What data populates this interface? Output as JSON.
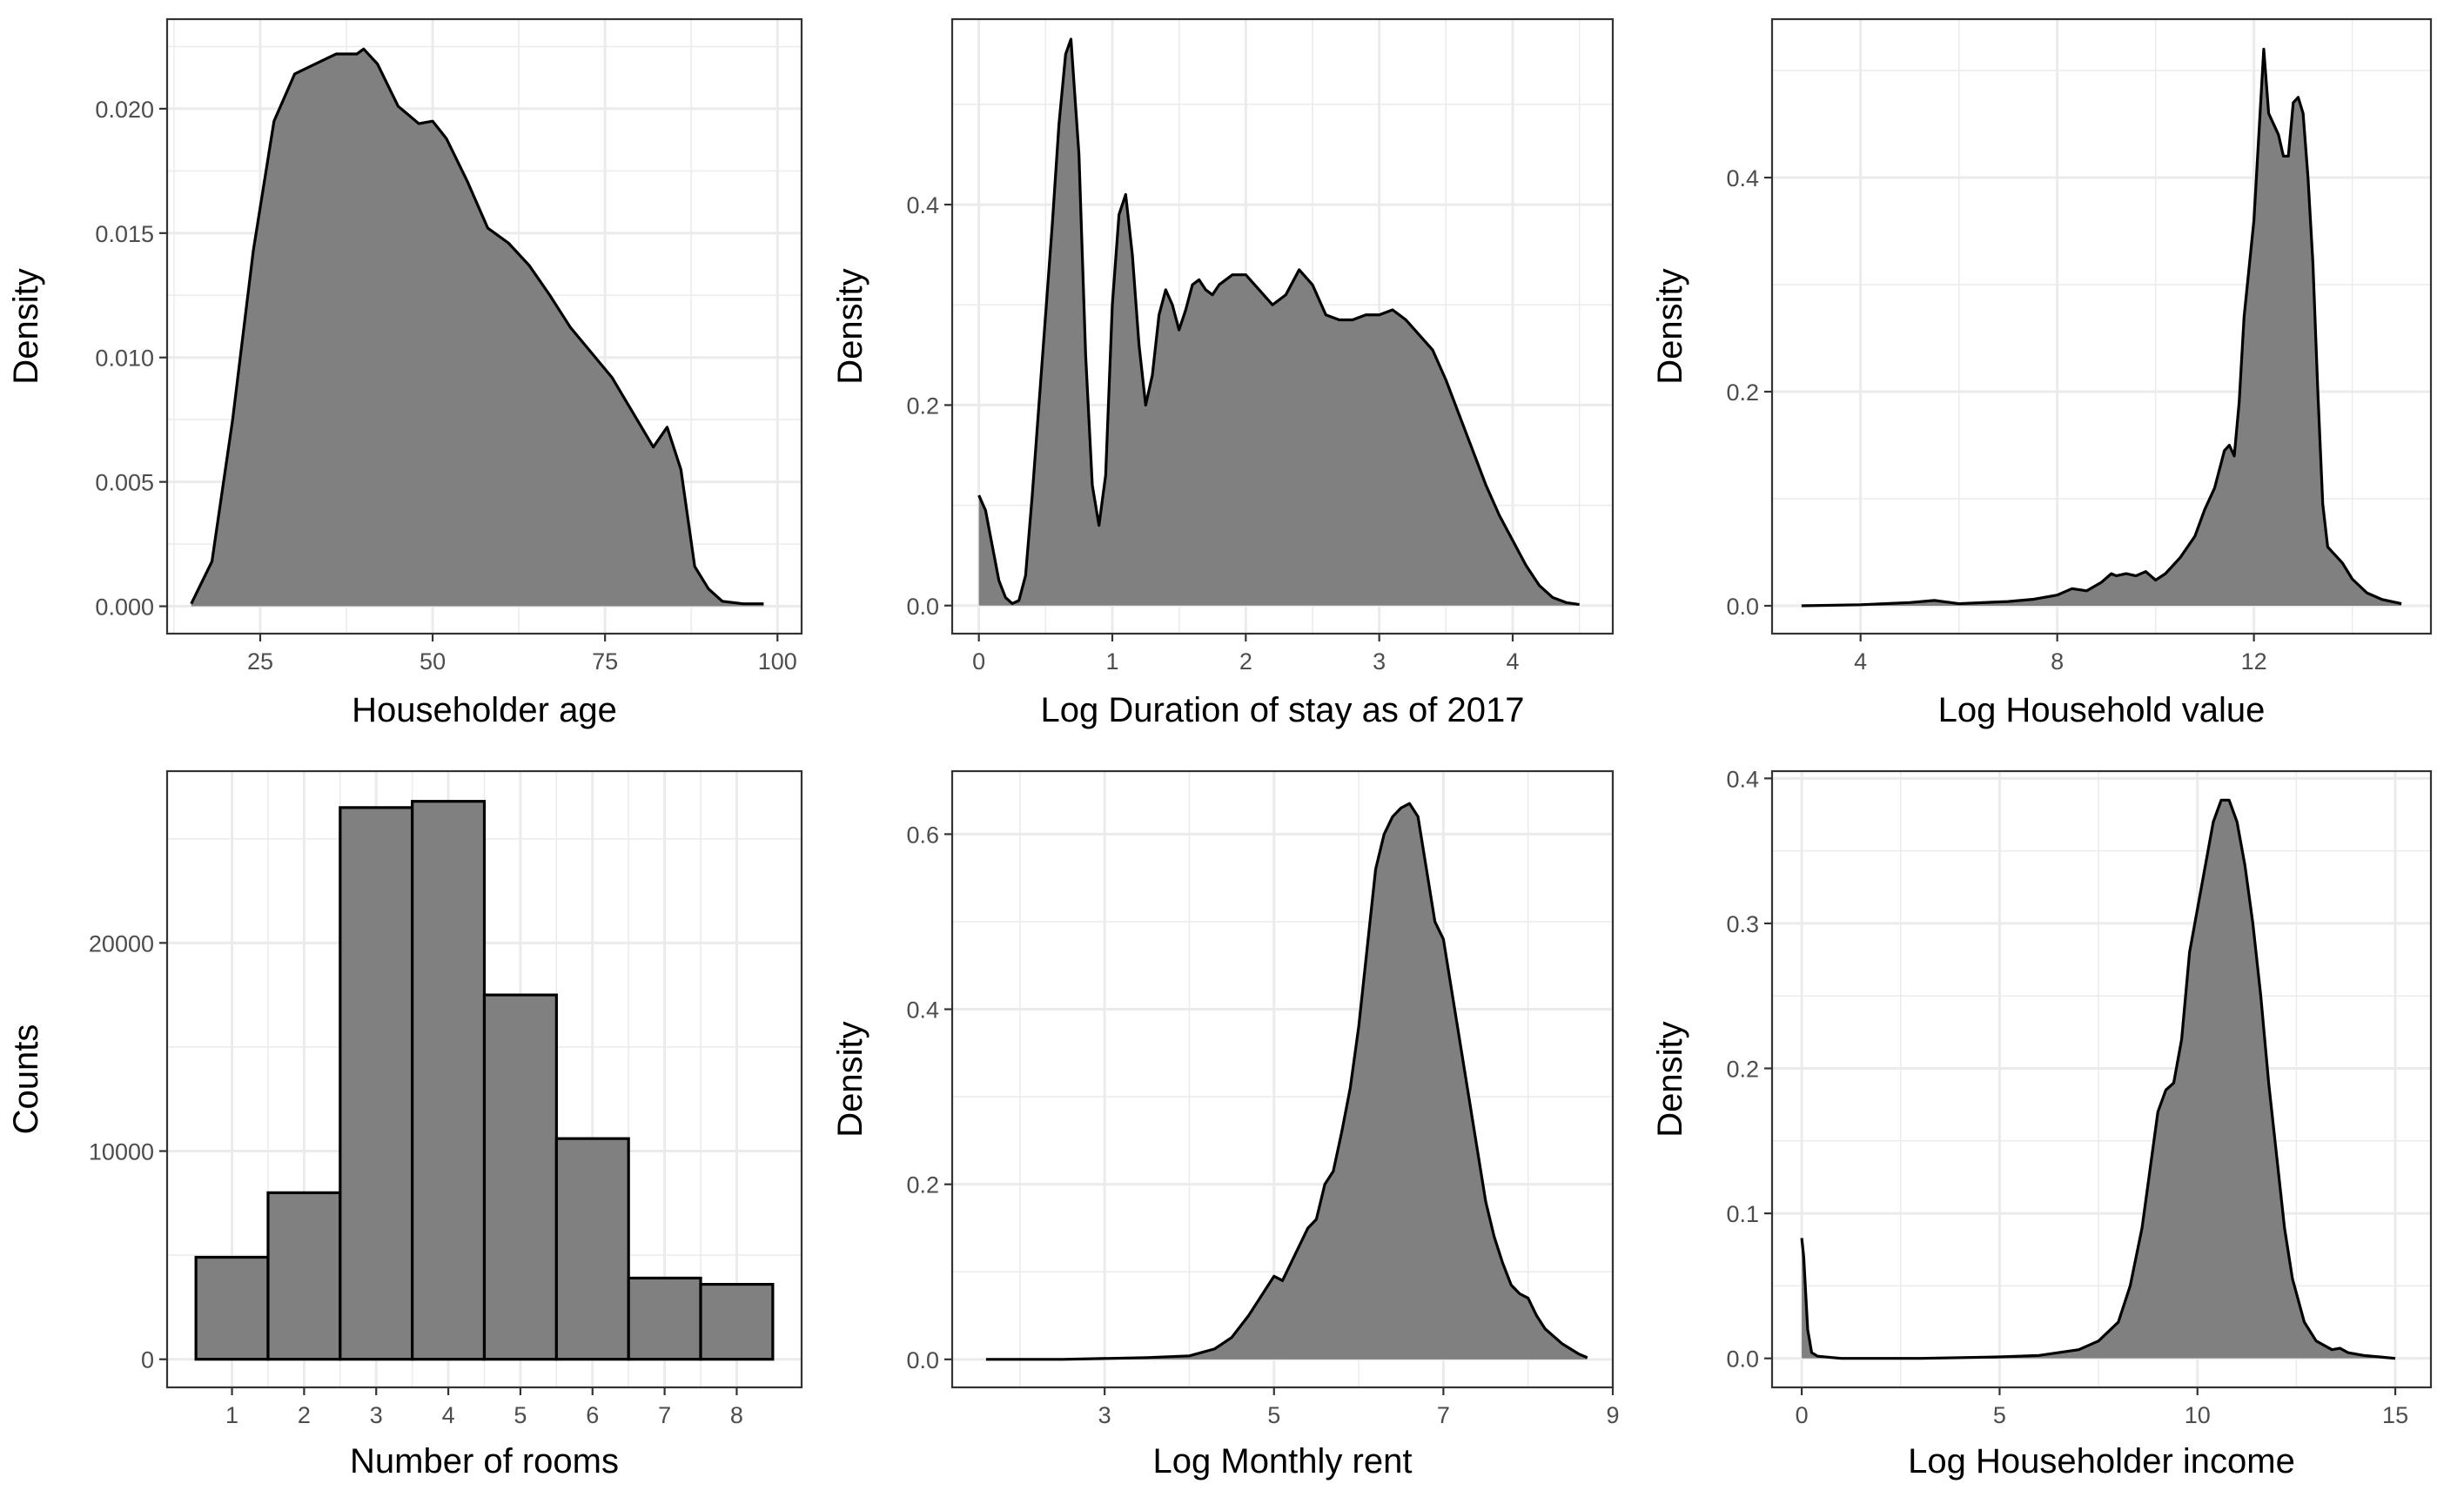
{
  "chart_data": [
    {
      "type": "area",
      "title": "",
      "xlabel": "Householder age",
      "ylabel": "Density",
      "xlim": [
        11.5,
        103.5
      ],
      "ylim": [
        -0.0011,
        0.0236
      ],
      "xticks": [
        25,
        50,
        75,
        100
      ],
      "xtick_labels": [
        "25",
        "50",
        "75",
        "100"
      ],
      "yticks": [
        0,
        0.005,
        0.01,
        0.015,
        0.02
      ],
      "ytick_labels": [
        "0.000",
        "0.005",
        "0.010",
        "0.015",
        "0.020"
      ],
      "grid": true,
      "series": [
        {
          "name": "density",
          "x": [
            15,
            18,
            21,
            24,
            27,
            30,
            33,
            36,
            39,
            40,
            42,
            45,
            48,
            50,
            52,
            55,
            58,
            61,
            64,
            67,
            70,
            73,
            76,
            79,
            82,
            84,
            86,
            88,
            90,
            92,
            95,
            98
          ],
          "y": [
            0.0001,
            0.0018,
            0.0075,
            0.0143,
            0.0195,
            0.0214,
            0.0218,
            0.0222,
            0.0222,
            0.0224,
            0.0218,
            0.0201,
            0.0194,
            0.0195,
            0.0188,
            0.0171,
            0.0152,
            0.0146,
            0.0137,
            0.0125,
            0.0112,
            0.0102,
            0.0092,
            0.0078,
            0.0064,
            0.0072,
            0.0055,
            0.0016,
            0.0007,
            0.0002,
            0.0001,
            0.0001
          ]
        }
      ]
    },
    {
      "type": "area",
      "title": "",
      "xlabel": "Log Duration of stay as of 2017",
      "ylabel": "Density",
      "xlim": [
        -0.2,
        4.75
      ],
      "ylim": [
        -0.028,
        0.585
      ],
      "xticks": [
        0,
        1,
        2,
        3,
        4
      ],
      "xtick_labels": [
        "0",
        "1",
        "2",
        "3",
        "4"
      ],
      "yticks": [
        0,
        0.2,
        0.4
      ],
      "ytick_labels": [
        "0.0",
        "0.2",
        "0.4"
      ],
      "grid": true,
      "series": [
        {
          "name": "density",
          "x": [
            0,
            0.05,
            0.1,
            0.15,
            0.2,
            0.25,
            0.3,
            0.35,
            0.4,
            0.45,
            0.5,
            0.55,
            0.6,
            0.65,
            0.69,
            0.75,
            0.8,
            0.85,
            0.9,
            0.95,
            1.0,
            1.05,
            1.1,
            1.15,
            1.2,
            1.25,
            1.3,
            1.35,
            1.4,
            1.45,
            1.5,
            1.55,
            1.6,
            1.65,
            1.7,
            1.75,
            1.8,
            1.9,
            2.0,
            2.1,
            2.2,
            2.3,
            2.4,
            2.5,
            2.6,
            2.7,
            2.8,
            2.9,
            3.0,
            3.1,
            3.2,
            3.3,
            3.4,
            3.5,
            3.6,
            3.7,
            3.8,
            3.9,
            4.0,
            4.1,
            4.2,
            4.3,
            4.4,
            4.5
          ],
          "y": [
            0.11,
            0.095,
            0.06,
            0.025,
            0.008,
            0.002,
            0.005,
            0.03,
            0.11,
            0.2,
            0.29,
            0.38,
            0.48,
            0.55,
            0.565,
            0.45,
            0.25,
            0.12,
            0.08,
            0.13,
            0.3,
            0.39,
            0.41,
            0.35,
            0.26,
            0.2,
            0.23,
            0.29,
            0.315,
            0.3,
            0.275,
            0.295,
            0.32,
            0.325,
            0.315,
            0.31,
            0.32,
            0.33,
            0.33,
            0.315,
            0.3,
            0.31,
            0.335,
            0.32,
            0.29,
            0.285,
            0.285,
            0.29,
            0.29,
            0.295,
            0.285,
            0.27,
            0.255,
            0.225,
            0.19,
            0.155,
            0.12,
            0.09,
            0.065,
            0.04,
            0.02,
            0.008,
            0.003,
            0.001
          ]
        }
      ]
    },
    {
      "type": "area",
      "title": "",
      "xlabel": "Log Household value",
      "ylabel": "Density",
      "xlim": [
        2.2,
        15.6
      ],
      "ylim": [
        -0.026,
        0.548
      ],
      "xticks": [
        4,
        8,
        12
      ],
      "xtick_labels": [
        "4",
        "8",
        "12"
      ],
      "yticks": [
        0,
        0.2,
        0.4
      ],
      "ytick_labels": [
        "0.0",
        "0.2",
        "0.4"
      ],
      "grid": true,
      "series": [
        {
          "name": "density",
          "x": [
            2.8,
            4.0,
            5.0,
            5.5,
            6.0,
            7.0,
            7.5,
            8.0,
            8.3,
            8.6,
            8.9,
            9.1,
            9.2,
            9.4,
            9.6,
            9.8,
            10.0,
            10.2,
            10.5,
            10.8,
            11.0,
            11.2,
            11.4,
            11.5,
            11.6,
            11.7,
            11.8,
            12.0,
            12.1,
            12.2,
            12.3,
            12.4,
            12.5,
            12.6,
            12.7,
            12.8,
            12.9,
            13.0,
            13.1,
            13.2,
            13.3,
            13.4,
            13.5,
            13.6,
            13.8,
            14.0,
            14.3,
            14.6,
            15.0
          ],
          "y": [
            0.0,
            0.001,
            0.003,
            0.005,
            0.002,
            0.004,
            0.006,
            0.01,
            0.016,
            0.014,
            0.022,
            0.03,
            0.028,
            0.03,
            0.028,
            0.032,
            0.024,
            0.03,
            0.045,
            0.065,
            0.09,
            0.11,
            0.145,
            0.15,
            0.14,
            0.19,
            0.27,
            0.36,
            0.44,
            0.52,
            0.46,
            0.45,
            0.44,
            0.42,
            0.42,
            0.47,
            0.475,
            0.46,
            0.4,
            0.32,
            0.2,
            0.095,
            0.055,
            0.05,
            0.04,
            0.025,
            0.012,
            0.006,
            0.002
          ]
        }
      ]
    },
    {
      "type": "bar",
      "title": "",
      "xlabel": "Number of rooms",
      "ylabel": "Counts",
      "xlim": [
        0.1,
        8.9
      ],
      "ylim": [
        -1350,
        28250
      ],
      "categories": [
        "1",
        "2",
        "3",
        "4",
        "5",
        "6",
        "7",
        "8"
      ],
      "values": [
        4900,
        8000,
        26500,
        26800,
        17500,
        10600,
        3900,
        3600
      ],
      "yticks": [
        0,
        10000,
        20000
      ],
      "ytick_labels": [
        "0",
        "10000",
        "20000"
      ],
      "grid": true
    },
    {
      "type": "area",
      "title": "",
      "xlabel": "Log Monthly rent",
      "ylabel": "Density",
      "xlim": [
        1.2,
        9.0
      ],
      "ylim": [
        -0.032,
        0.672
      ],
      "xticks": [
        3,
        5,
        7,
        9
      ],
      "xtick_labels": [
        "3",
        "5",
        "7",
        "9"
      ],
      "yticks": [
        0,
        0.2,
        0.4,
        0.6
      ],
      "ytick_labels": [
        "0.0",
        "0.2",
        "0.4",
        "0.6"
      ],
      "grid": true,
      "series": [
        {
          "name": "density",
          "x": [
            1.6,
            2.5,
            3.5,
            4.0,
            4.3,
            4.5,
            4.7,
            4.9,
            5.0,
            5.1,
            5.2,
            5.3,
            5.4,
            5.5,
            5.6,
            5.7,
            5.8,
            5.9,
            6.0,
            6.1,
            6.2,
            6.3,
            6.4,
            6.5,
            6.6,
            6.7,
            6.8,
            6.9,
            7.0,
            7.1,
            7.2,
            7.3,
            7.4,
            7.5,
            7.6,
            7.7,
            7.8,
            7.9,
            8.0,
            8.1,
            8.2,
            8.4,
            8.6,
            8.7
          ],
          "y": [
            0.0,
            0.0,
            0.002,
            0.004,
            0.012,
            0.025,
            0.05,
            0.08,
            0.095,
            0.09,
            0.11,
            0.13,
            0.15,
            0.16,
            0.2,
            0.215,
            0.26,
            0.31,
            0.38,
            0.47,
            0.56,
            0.6,
            0.62,
            0.63,
            0.635,
            0.62,
            0.56,
            0.5,
            0.48,
            0.42,
            0.36,
            0.3,
            0.24,
            0.18,
            0.14,
            0.11,
            0.085,
            0.075,
            0.07,
            0.05,
            0.035,
            0.018,
            0.006,
            0.002
          ]
        }
      ]
    },
    {
      "type": "area",
      "title": "",
      "xlabel": "Log Householder income",
      "ylabel": "Density",
      "xlim": [
        -0.75,
        15.9
      ],
      "ylim": [
        -0.02,
        0.405
      ],
      "xticks": [
        0,
        5,
        10,
        15
      ],
      "xtick_labels": [
        "0",
        "5",
        "10",
        "15"
      ],
      "yticks": [
        0,
        0.1,
        0.2,
        0.3,
        0.4
      ],
      "ytick_labels": [
        "0.0",
        "0.1",
        "0.2",
        "0.3",
        "0.4"
      ],
      "grid": true,
      "series": [
        {
          "name": "density",
          "x": [
            0.0,
            0.05,
            0.15,
            0.25,
            0.4,
            1,
            3,
            5,
            6,
            7,
            7.5,
            8,
            8.3,
            8.6,
            8.8,
            9.0,
            9.2,
            9.4,
            9.6,
            9.8,
            10.0,
            10.2,
            10.4,
            10.6,
            10.8,
            11.0,
            11.2,
            11.4,
            11.6,
            11.8,
            12.0,
            12.2,
            12.4,
            12.7,
            13.0,
            13.4,
            13.6,
            13.8,
            14.2,
            14.6,
            15.0
          ],
          "y": [
            0.083,
            0.07,
            0.02,
            0.004,
            0.0015,
            0.0,
            0.0,
            0.001,
            0.002,
            0.006,
            0.012,
            0.025,
            0.05,
            0.09,
            0.13,
            0.17,
            0.185,
            0.19,
            0.22,
            0.28,
            0.31,
            0.34,
            0.37,
            0.385,
            0.385,
            0.37,
            0.34,
            0.3,
            0.25,
            0.19,
            0.14,
            0.09,
            0.055,
            0.025,
            0.012,
            0.006,
            0.007,
            0.004,
            0.002,
            0.001,
            0.0
          ]
        }
      ]
    }
  ]
}
